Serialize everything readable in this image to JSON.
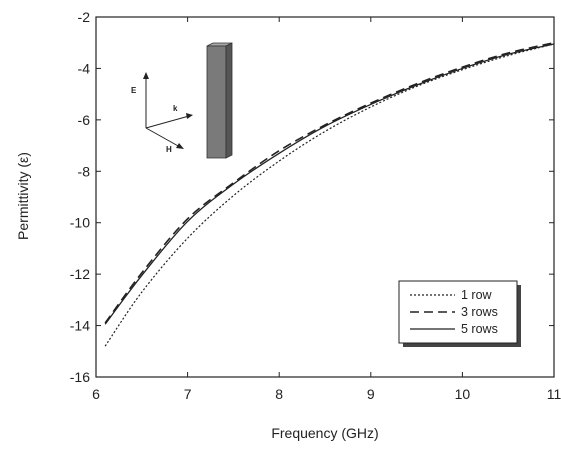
{
  "chart_data": {
    "type": "line",
    "xlabel": "Frequency (GHz)",
    "ylabel": "Permittivity (ε)",
    "xlim": [
      6,
      11
    ],
    "ylim": [
      -16,
      -2
    ],
    "xticks": [
      "6",
      "7",
      "8",
      "9",
      "10",
      "11"
    ],
    "yticks": [
      "-2",
      "-4",
      "-6",
      "-8",
      "-10",
      "-12",
      "-14",
      "-16"
    ],
    "grid": false,
    "legend_position": "bottom-right",
    "series": [
      {
        "name": "1 row",
        "style": "dotted",
        "x": [
          6.1,
          6.5,
          7,
          7.5,
          8,
          8.5,
          9,
          9.5,
          10,
          10.5,
          11
        ],
        "y": [
          -14.8,
          -12.7,
          -10.6,
          -8.95,
          -7.6,
          -6.45,
          -5.5,
          -4.7,
          -4.05,
          -3.5,
          -3.05
        ]
      },
      {
        "name": "3 rows",
        "style": "dashed",
        "x": [
          6.1,
          6.5,
          7,
          7.5,
          8,
          8.5,
          9,
          9.5,
          10,
          10.5,
          11
        ],
        "y": [
          -13.9,
          -11.95,
          -9.85,
          -8.45,
          -7.2,
          -6.2,
          -5.35,
          -4.6,
          -3.95,
          -3.4,
          -3.0
        ]
      },
      {
        "name": "5 rows",
        "style": "solid",
        "x": [
          6.1,
          6.5,
          7,
          7.5,
          8,
          8.5,
          9,
          9.5,
          10,
          10.5,
          11
        ],
        "y": [
          -13.95,
          -12.05,
          -9.95,
          -8.5,
          -7.3,
          -6.25,
          -5.4,
          -4.65,
          -4.0,
          -3.45,
          -3.05
        ]
      }
    ],
    "inset": {
      "labels": {
        "e": "E",
        "k": "k",
        "h": "H"
      },
      "colors": {
        "rod_front": "#7a7a7a",
        "rod_side": "#555555",
        "rod_top": "#a8a8a8"
      }
    },
    "colors": {
      "lines": "#222222",
      "axes": "#222222"
    }
  }
}
